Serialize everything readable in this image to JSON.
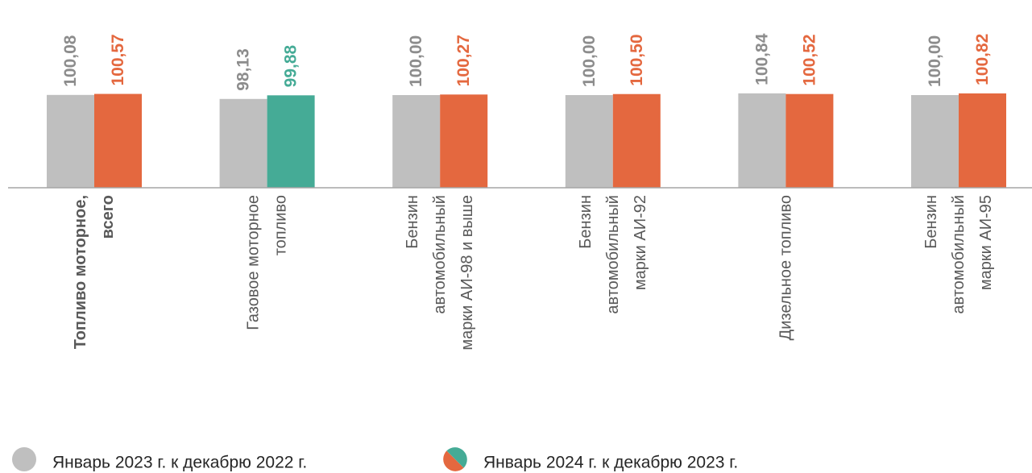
{
  "chart_data": {
    "type": "bar",
    "categories": [
      [
        "Топливо моторное,",
        "всего"
      ],
      [
        "Газовое моторное",
        "топливо"
      ],
      [
        "Бензин",
        "автомобильный",
        "марки АИ-98 и выше"
      ],
      [
        "Бензин",
        "автомобильный",
        "марки АИ-92"
      ],
      [
        "Дизельное топливо"
      ],
      [
        "Бензин",
        "автомобильный",
        "марки АИ-95"
      ]
    ],
    "category_bold": [
      true,
      false,
      false,
      false,
      false,
      false
    ],
    "series": [
      {
        "name": "Январь 2023 г. к декабрю 2022 г.",
        "color": "#bfbfbf",
        "label_color": "#8c8c8c",
        "values": [
          100.08,
          98.13,
          100.0,
          100.0,
          100.84,
          100.0
        ],
        "value_labels": [
          "100,08",
          "98,13",
          "100,00",
          "100,00",
          "100,84",
          "100,00"
        ]
      },
      {
        "name": "Январь 2024 г. к декабрю 2023 г.",
        "colors": [
          "#e4683f",
          "#45ab96",
          "#e4683f",
          "#e4683f",
          "#e4683f",
          "#e4683f"
        ],
        "values": [
          100.57,
          99.88,
          100.27,
          100.5,
          100.52,
          100.82
        ],
        "value_labels": [
          "100,57",
          "99,88",
          "100,27",
          "100,50",
          "100,52",
          "100,82"
        ]
      }
    ],
    "ylim": [
      55,
      145
    ]
  }
}
